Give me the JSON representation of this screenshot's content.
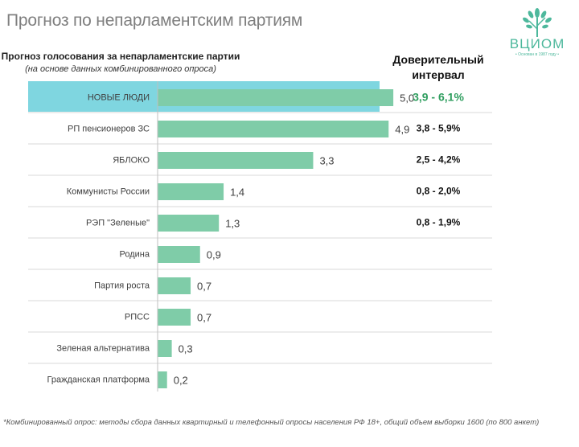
{
  "header": {
    "title": "Прогноз по непарламентским партиям"
  },
  "logo": {
    "name": "ВЦИОМ",
    "tagline": "• Основан в 1987 году •"
  },
  "chart_data": {
    "type": "bar",
    "orientation": "horizontal",
    "title": "Прогноз голосования за непарламентские партии",
    "subtitle": "(на основе данных комбинированного опроса)",
    "categories": [
      "НОВЫЕ ЛЮДИ",
      "РП пенсионеров ЗС",
      "ЯБЛОКО",
      "Коммунисты России",
      "РЭП \"Зеленые\"",
      "Родина",
      "Партия роста",
      "РПСС",
      "Зеленая альтернатива",
      "Гражданская платформа"
    ],
    "values": [
      5.0,
      4.9,
      3.3,
      1.4,
      1.3,
      0.9,
      0.7,
      0.7,
      0.3,
      0.2
    ],
    "value_labels": [
      "5,0",
      "4,9",
      "3,3",
      "1,4",
      "1,3",
      "0,9",
      "0,7",
      "0,7",
      "0,3",
      "0,2"
    ],
    "xlim": [
      0,
      5.8
    ],
    "highlight_index": 0,
    "confidence_interval_header": "Доверительный интервал",
    "confidence_intervals": [
      "3,9 - 6,1%",
      "3,8 - 5,9%",
      "2,5 - 4,2%",
      "0,8 - 2,0%",
      "0,8 - 1,9%"
    ],
    "colors": {
      "bar": "#7fcca8",
      "highlight_bg": "#7fd6e0",
      "highlight_ci": "#2f9e5f",
      "separator": "#d9d9d9"
    }
  },
  "footnote": "*Комбинированный опрос: методы сбора данных квартирный и телефонный опросы населения РФ 18+, общий объем выборки 1600 (по 800 анкет)"
}
